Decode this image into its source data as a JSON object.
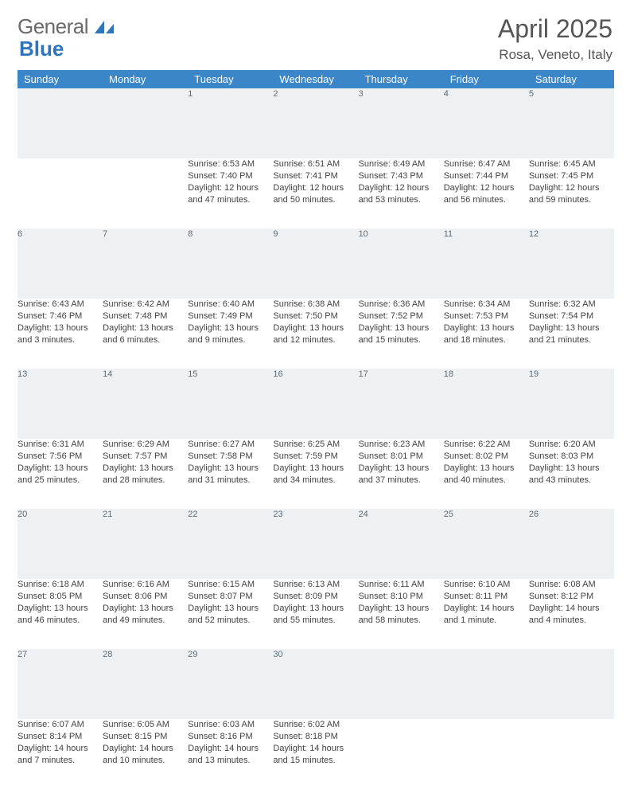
{
  "brand": {
    "word1": "General",
    "word2": "Blue"
  },
  "header": {
    "title": "April 2025",
    "location": "Rosa, Veneto, Italy"
  },
  "colors": {
    "header_bg": "#3a86c9",
    "daynum_bg": "#eef1f4"
  },
  "dow": [
    "Sunday",
    "Monday",
    "Tuesday",
    "Wednesday",
    "Thursday",
    "Friday",
    "Saturday"
  ],
  "weeks": [
    {
      "nums": [
        "",
        "",
        "1",
        "2",
        "3",
        "4",
        "5"
      ],
      "cells": [
        "",
        "",
        "Sunrise: 6:53 AM|Sunset: 7:40 PM|Daylight: 12 hours|and 47 minutes.",
        "Sunrise: 6:51 AM|Sunset: 7:41 PM|Daylight: 12 hours|and 50 minutes.",
        "Sunrise: 6:49 AM|Sunset: 7:43 PM|Daylight: 12 hours|and 53 minutes.",
        "Sunrise: 6:47 AM|Sunset: 7:44 PM|Daylight: 12 hours|and 56 minutes.",
        "Sunrise: 6:45 AM|Sunset: 7:45 PM|Daylight: 12 hours|and 59 minutes."
      ]
    },
    {
      "nums": [
        "6",
        "7",
        "8",
        "9",
        "10",
        "11",
        "12"
      ],
      "cells": [
        "Sunrise: 6:43 AM|Sunset: 7:46 PM|Daylight: 13 hours|and 3 minutes.",
        "Sunrise: 6:42 AM|Sunset: 7:48 PM|Daylight: 13 hours|and 6 minutes.",
        "Sunrise: 6:40 AM|Sunset: 7:49 PM|Daylight: 13 hours|and 9 minutes.",
        "Sunrise: 6:38 AM|Sunset: 7:50 PM|Daylight: 13 hours|and 12 minutes.",
        "Sunrise: 6:36 AM|Sunset: 7:52 PM|Daylight: 13 hours|and 15 minutes.",
        "Sunrise: 6:34 AM|Sunset: 7:53 PM|Daylight: 13 hours|and 18 minutes.",
        "Sunrise: 6:32 AM|Sunset: 7:54 PM|Daylight: 13 hours|and 21 minutes."
      ]
    },
    {
      "nums": [
        "13",
        "14",
        "15",
        "16",
        "17",
        "18",
        "19"
      ],
      "cells": [
        "Sunrise: 6:31 AM|Sunset: 7:56 PM|Daylight: 13 hours|and 25 minutes.",
        "Sunrise: 6:29 AM|Sunset: 7:57 PM|Daylight: 13 hours|and 28 minutes.",
        "Sunrise: 6:27 AM|Sunset: 7:58 PM|Daylight: 13 hours|and 31 minutes.",
        "Sunrise: 6:25 AM|Sunset: 7:59 PM|Daylight: 13 hours|and 34 minutes.",
        "Sunrise: 6:23 AM|Sunset: 8:01 PM|Daylight: 13 hours|and 37 minutes.",
        "Sunrise: 6:22 AM|Sunset: 8:02 PM|Daylight: 13 hours|and 40 minutes.",
        "Sunrise: 6:20 AM|Sunset: 8:03 PM|Daylight: 13 hours|and 43 minutes."
      ]
    },
    {
      "nums": [
        "20",
        "21",
        "22",
        "23",
        "24",
        "25",
        "26"
      ],
      "cells": [
        "Sunrise: 6:18 AM|Sunset: 8:05 PM|Daylight: 13 hours|and 46 minutes.",
        "Sunrise: 6:16 AM|Sunset: 8:06 PM|Daylight: 13 hours|and 49 minutes.",
        "Sunrise: 6:15 AM|Sunset: 8:07 PM|Daylight: 13 hours|and 52 minutes.",
        "Sunrise: 6:13 AM|Sunset: 8:09 PM|Daylight: 13 hours|and 55 minutes.",
        "Sunrise: 6:11 AM|Sunset: 8:10 PM|Daylight: 13 hours|and 58 minutes.",
        "Sunrise: 6:10 AM|Sunset: 8:11 PM|Daylight: 14 hours|and 1 minute.",
        "Sunrise: 6:08 AM|Sunset: 8:12 PM|Daylight: 14 hours|and 4 minutes."
      ]
    },
    {
      "nums": [
        "27",
        "28",
        "29",
        "30",
        "",
        "",
        ""
      ],
      "cells": [
        "Sunrise: 6:07 AM|Sunset: 8:14 PM|Daylight: 14 hours|and 7 minutes.",
        "Sunrise: 6:05 AM|Sunset: 8:15 PM|Daylight: 14 hours|and 10 minutes.",
        "Sunrise: 6:03 AM|Sunset: 8:16 PM|Daylight: 14 hours|and 13 minutes.",
        "Sunrise: 6:02 AM|Sunset: 8:18 PM|Daylight: 14 hours|and 15 minutes.",
        "",
        "",
        ""
      ]
    }
  ]
}
